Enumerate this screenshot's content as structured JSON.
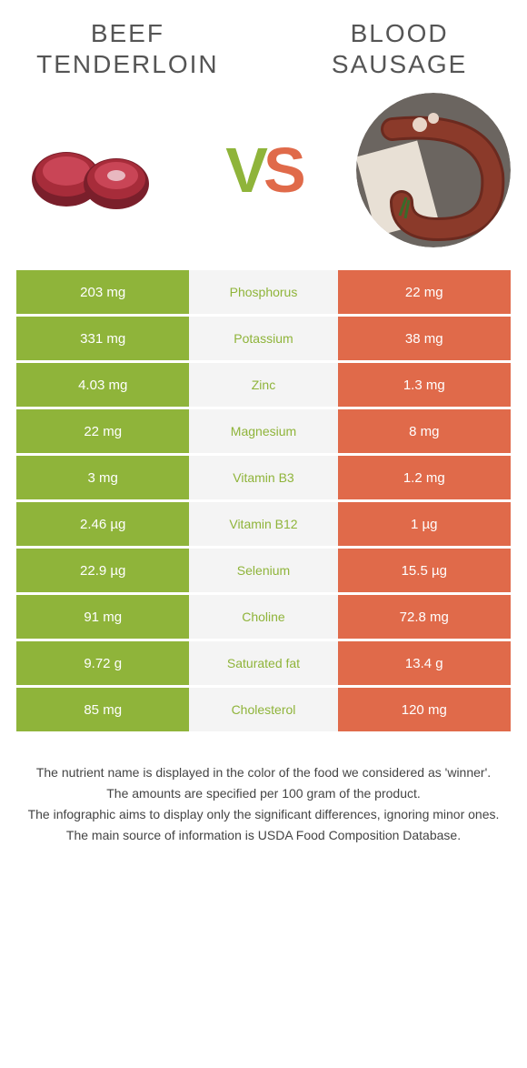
{
  "titles": {
    "left": "Beef tenderloin",
    "right": "Blood sausage"
  },
  "vs": {
    "v": "V",
    "s": "S"
  },
  "colors": {
    "left": "#8fb43a",
    "right": "#e06a4a",
    "mid_bg": "#f4f4f4",
    "title_text": "#555555"
  },
  "rows": [
    {
      "left": "203 mg",
      "label": "Phosphorus",
      "right": "22 mg",
      "winner": "left"
    },
    {
      "left": "331 mg",
      "label": "Potassium",
      "right": "38 mg",
      "winner": "left"
    },
    {
      "left": "4.03 mg",
      "label": "Zinc",
      "right": "1.3 mg",
      "winner": "left"
    },
    {
      "left": "22 mg",
      "label": "Magnesium",
      "right": "8 mg",
      "winner": "left"
    },
    {
      "left": "3 mg",
      "label": "Vitamin B3",
      "right": "1.2 mg",
      "winner": "left"
    },
    {
      "left": "2.46 µg",
      "label": "Vitamin B12",
      "right": "1 µg",
      "winner": "left"
    },
    {
      "left": "22.9 µg",
      "label": "Selenium",
      "right": "15.5 µg",
      "winner": "left"
    },
    {
      "left": "91 mg",
      "label": "Choline",
      "right": "72.8 mg",
      "winner": "left"
    },
    {
      "left": "9.72 g",
      "label": "Saturated fat",
      "right": "13.4 g",
      "winner": "left"
    },
    {
      "left": "85 mg",
      "label": "Cholesterol",
      "right": "120 mg",
      "winner": "left"
    }
  ],
  "footnotes": [
    "The nutrient name is displayed in the color of the food we considered as 'winner'.",
    "The amounts are specified per 100 gram of the product.",
    "The infographic aims to display only the significant differences, ignoring minor ones.",
    "The main source of information is USDA Food Composition Database."
  ],
  "images": {
    "left_alt": "beef-tenderloin-image",
    "right_alt": "blood-sausage-image"
  }
}
